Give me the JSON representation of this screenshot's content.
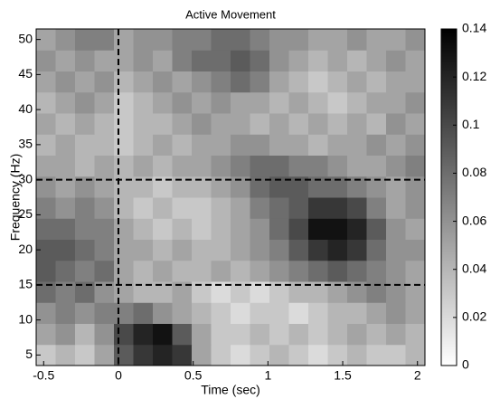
{
  "chart_data": {
    "type": "heatmap",
    "title": "Active Movement",
    "x_label": "Time (sec)",
    "y_label": "Frequency (Hz)",
    "x": [
      -0.485,
      -0.355,
      -0.225,
      -0.095,
      0.035,
      0.165,
      0.295,
      0.425,
      0.555,
      0.685,
      0.815,
      0.945,
      1.075,
      1.205,
      1.335,
      1.465,
      1.595,
      1.725,
      1.855,
      1.985
    ],
    "y": [
      5,
      8,
      11,
      14,
      17,
      20,
      23,
      26,
      29,
      32,
      35,
      38,
      41,
      44,
      47,
      50
    ],
    "z": [
      [
        0.03,
        0.04,
        0.03,
        0.05,
        0.09,
        0.11,
        0.12,
        0.11,
        0.05,
        0.03,
        0.02,
        0.03,
        0.04,
        0.03,
        0.02,
        0.03,
        0.04,
        0.03,
        0.03,
        0.04
      ],
      [
        0.05,
        0.06,
        0.04,
        0.06,
        0.1,
        0.12,
        0.13,
        0.09,
        0.05,
        0.03,
        0.03,
        0.04,
        0.03,
        0.04,
        0.03,
        0.04,
        0.05,
        0.04,
        0.05,
        0.04
      ],
      [
        0.06,
        0.07,
        0.06,
        0.07,
        0.07,
        0.08,
        0.06,
        0.05,
        0.04,
        0.03,
        0.02,
        0.03,
        0.03,
        0.02,
        0.03,
        0.04,
        0.04,
        0.05,
        0.06,
        0.05
      ],
      [
        0.08,
        0.07,
        0.08,
        0.06,
        0.05,
        0.04,
        0.04,
        0.05,
        0.03,
        0.02,
        0.03,
        0.02,
        0.03,
        0.04,
        0.04,
        0.05,
        0.06,
        0.07,
        0.06,
        0.05
      ],
      [
        0.09,
        0.08,
        0.07,
        0.08,
        0.05,
        0.04,
        0.05,
        0.04,
        0.04,
        0.05,
        0.04,
        0.05,
        0.06,
        0.07,
        0.08,
        0.09,
        0.08,
        0.07,
        0.06,
        0.05
      ],
      [
        0.09,
        0.09,
        0.08,
        0.07,
        0.05,
        0.05,
        0.04,
        0.05,
        0.04,
        0.04,
        0.05,
        0.06,
        0.07,
        0.09,
        0.11,
        0.12,
        0.11,
        0.08,
        0.06,
        0.06
      ],
      [
        0.08,
        0.08,
        0.07,
        0.07,
        0.05,
        0.04,
        0.03,
        0.04,
        0.03,
        0.04,
        0.05,
        0.06,
        0.08,
        0.1,
        0.13,
        0.13,
        0.12,
        0.09,
        0.06,
        0.05
      ],
      [
        0.07,
        0.06,
        0.07,
        0.06,
        0.04,
        0.03,
        0.04,
        0.03,
        0.03,
        0.04,
        0.05,
        0.07,
        0.08,
        0.09,
        0.11,
        0.11,
        0.1,
        0.07,
        0.05,
        0.06
      ],
      [
        0.06,
        0.05,
        0.06,
        0.05,
        0.04,
        0.04,
        0.03,
        0.04,
        0.04,
        0.05,
        0.06,
        0.08,
        0.09,
        0.09,
        0.08,
        0.08,
        0.07,
        0.06,
        0.05,
        0.06
      ],
      [
        0.05,
        0.05,
        0.04,
        0.05,
        0.04,
        0.05,
        0.04,
        0.05,
        0.05,
        0.06,
        0.07,
        0.08,
        0.08,
        0.07,
        0.07,
        0.06,
        0.05,
        0.05,
        0.06,
        0.07
      ],
      [
        0.04,
        0.05,
        0.04,
        0.04,
        0.03,
        0.04,
        0.05,
        0.04,
        0.05,
        0.05,
        0.06,
        0.06,
        0.05,
        0.05,
        0.04,
        0.05,
        0.05,
        0.06,
        0.05,
        0.06
      ],
      [
        0.05,
        0.04,
        0.05,
        0.04,
        0.03,
        0.04,
        0.04,
        0.05,
        0.06,
        0.05,
        0.05,
        0.04,
        0.05,
        0.04,
        0.05,
        0.04,
        0.05,
        0.04,
        0.06,
        0.05
      ],
      [
        0.04,
        0.05,
        0.06,
        0.05,
        0.03,
        0.04,
        0.05,
        0.06,
        0.05,
        0.06,
        0.05,
        0.05,
        0.04,
        0.05,
        0.04,
        0.03,
        0.04,
        0.05,
        0.05,
        0.06
      ],
      [
        0.05,
        0.06,
        0.05,
        0.06,
        0.04,
        0.05,
        0.06,
        0.05,
        0.06,
        0.07,
        0.08,
        0.07,
        0.05,
        0.04,
        0.03,
        0.04,
        0.05,
        0.04,
        0.05,
        0.05
      ],
      [
        0.06,
        0.05,
        0.06,
        0.05,
        0.05,
        0.06,
        0.05,
        0.07,
        0.08,
        0.08,
        0.09,
        0.08,
        0.06,
        0.05,
        0.04,
        0.05,
        0.04,
        0.05,
        0.06,
        0.05
      ],
      [
        0.05,
        0.06,
        0.07,
        0.07,
        0.05,
        0.06,
        0.06,
        0.07,
        0.07,
        0.08,
        0.08,
        0.07,
        0.06,
        0.06,
        0.05,
        0.05,
        0.06,
        0.05,
        0.05,
        0.06
      ]
    ],
    "xlim": [
      -0.55,
      2.05
    ],
    "ylim": [
      3.5,
      51.5
    ],
    "xticks": [
      -0.5,
      0,
      0.5,
      1,
      1.5,
      2
    ],
    "yticks": [
      5,
      10,
      15,
      20,
      25,
      30,
      35,
      40,
      45,
      50
    ],
    "clim": [
      0,
      0.14
    ],
    "cticks": [
      0,
      0.02,
      0.04,
      0.06,
      0.08,
      0.1,
      0.12,
      0.14
    ],
    "colormap": "gray_reversed",
    "vlines": [
      0
    ],
    "hlines": [
      15,
      30
    ]
  }
}
